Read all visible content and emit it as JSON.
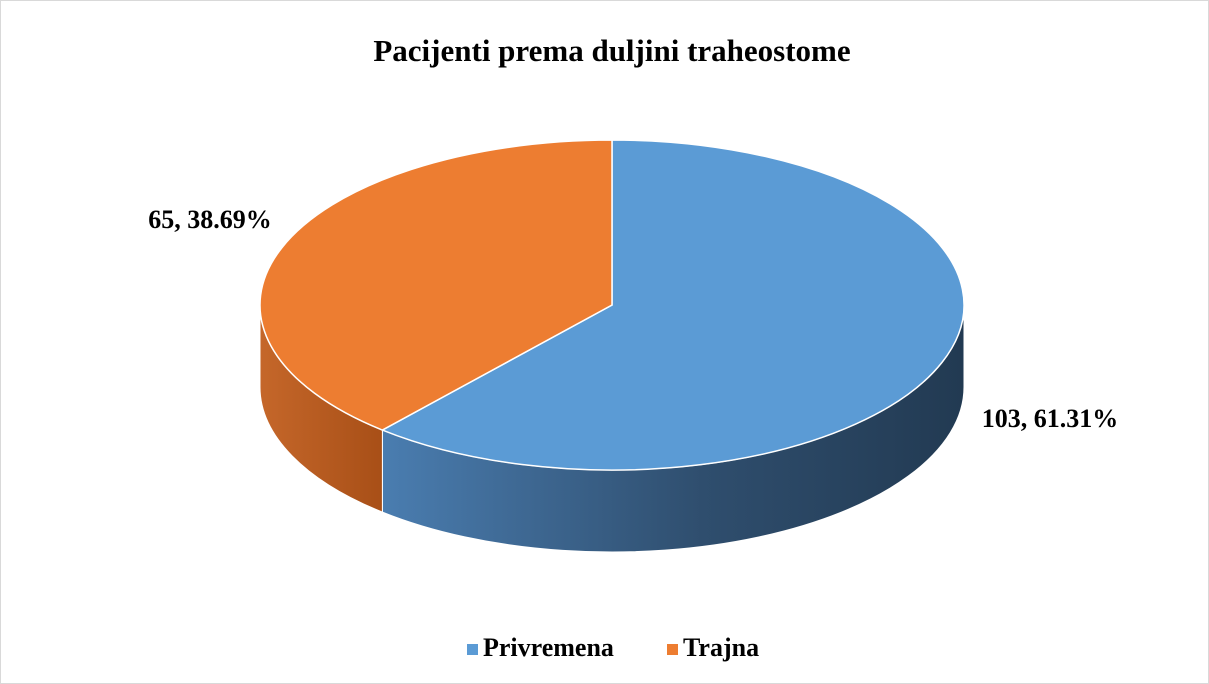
{
  "chart_data": {
    "type": "pie",
    "title": "Pacijenti prema duljini traheostome",
    "categories": [
      "Privremena",
      "Trajna"
    ],
    "values": [
      103,
      65
    ],
    "value_labels": [
      "103, 61.31%",
      "65, 38.69%"
    ],
    "colors": [
      "#5b9bd5",
      "#ed7d31"
    ],
    "legend": "bottom"
  }
}
